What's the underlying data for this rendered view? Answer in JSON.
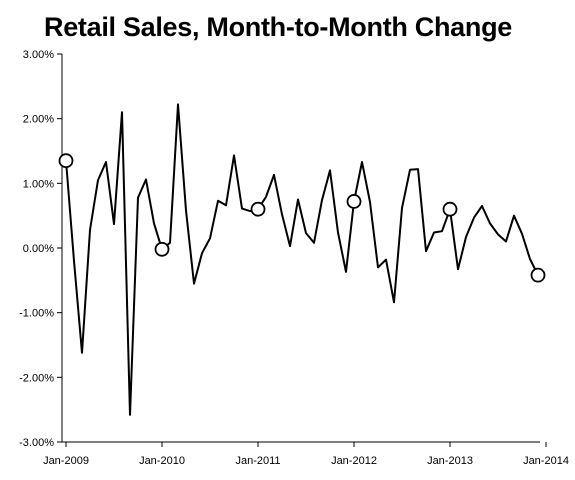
{
  "chart_data": {
    "type": "line",
    "title": "Retail Sales, Month-to-Month Change",
    "xlabel": "",
    "ylabel": "",
    "ylim": [
      -3.0,
      3.0
    ],
    "y_ticks": [
      "3.00%",
      "2.00%",
      "1.00%",
      "0.00%",
      "-1.00%",
      "-2.00%",
      "-3.00%"
    ],
    "x_ticks": [
      "Jan-2009",
      "Jan-2010",
      "Jan-2011",
      "Jan-2012",
      "Jan-2013",
      "Jan-2014"
    ],
    "x_start": "Jan-2009",
    "grid": false,
    "series": [
      {
        "values": [
          1.35,
          -0.2,
          -1.62,
          0.28,
          1.05,
          1.33,
          0.37,
          2.1,
          -2.58,
          0.78,
          1.06,
          0.38,
          -0.02,
          0.08,
          2.22,
          0.58,
          -0.55,
          -0.08,
          0.15,
          0.73,
          0.66,
          1.43,
          0.61,
          0.57,
          0.6,
          0.79,
          1.13,
          0.52,
          0.03,
          0.75,
          0.23,
          0.08,
          0.74,
          1.2,
          0.24,
          -0.37,
          0.72,
          1.33,
          0.71,
          -0.3,
          -0.18,
          -0.84,
          0.62,
          1.21,
          1.22,
          -0.05,
          0.24,
          0.26,
          0.6,
          -0.33,
          0.17,
          0.47,
          0.65,
          0.38,
          0.21,
          0.1,
          0.5,
          0.22,
          -0.17,
          -0.42
        ],
        "marker_months": [
          "Jan-2009",
          "Jan-2010",
          "Jan-2011",
          "Jan-2012",
          "Jan-2013",
          "Jan-2014"
        ]
      }
    ]
  }
}
